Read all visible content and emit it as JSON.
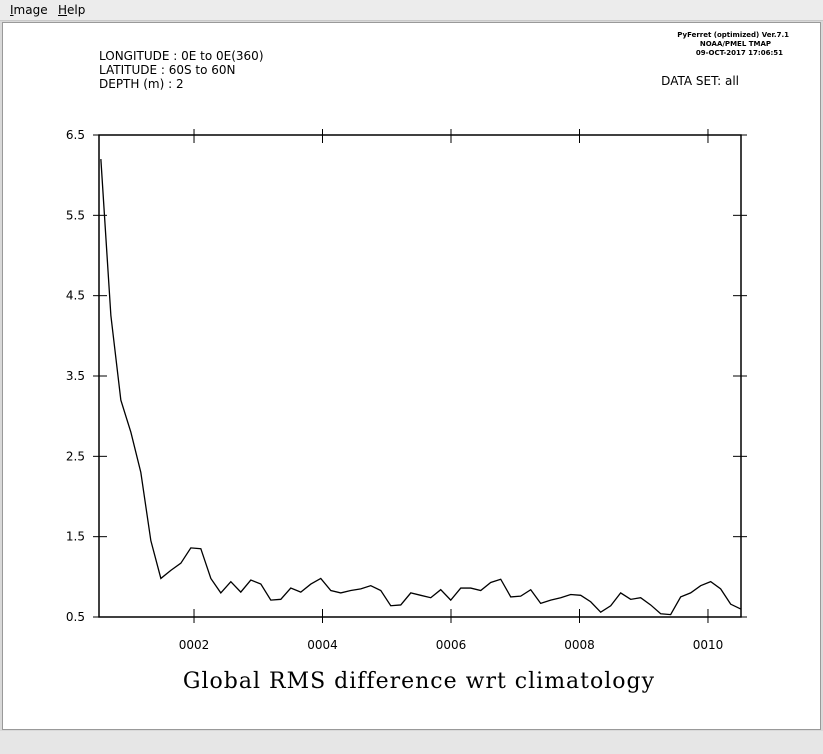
{
  "menu": [
    "Image",
    "Help"
  ],
  "header": {
    "longitude": "LONGITUDE : 0E to 0E(360)",
    "latitude": "LATITUDE : 60S to 60N",
    "depth": "DEPTH (m) : 2",
    "dataset": "DATA SET: all",
    "version": "PyFerret (optimized) Ver.7.1",
    "org": "NOAA/PMEL TMAP",
    "timestamp": "09-OCT-2017 17:06:51"
  },
  "chart_data": {
    "type": "line",
    "title": "Global RMS difference wrt climatology",
    "x": [
      0.55,
      0.706,
      0.861,
      1.017,
      1.172,
      1.328,
      1.484,
      1.639,
      1.795,
      1.95,
      2.106,
      2.262,
      2.417,
      2.573,
      2.728,
      2.884,
      3.04,
      3.195,
      3.351,
      3.506,
      3.662,
      3.818,
      3.973,
      4.129,
      4.284,
      4.44,
      4.596,
      4.751,
      4.907,
      5.062,
      5.218,
      5.374,
      5.529,
      5.685,
      5.84,
      5.996,
      6.152,
      6.307,
      6.463,
      6.618,
      6.774,
      6.93,
      7.085,
      7.241,
      7.396,
      7.552,
      7.708,
      7.863,
      8.019,
      8.174,
      8.33,
      8.486,
      8.641,
      8.797,
      8.952,
      9.108,
      9.264,
      9.419,
      9.575,
      9.73,
      9.886,
      10.042,
      10.197,
      10.353,
      10.508
    ],
    "series": [
      {
        "color": "#000000",
        "values": [
          6.2,
          4.25,
          3.2,
          2.8,
          2.3,
          1.45,
          0.98,
          1.08,
          1.17,
          1.36,
          1.35,
          0.98,
          0.8,
          0.94,
          0.81,
          0.96,
          0.91,
          0.71,
          0.72,
          0.86,
          0.81,
          0.91,
          0.98,
          0.83,
          0.8,
          0.83,
          0.85,
          0.89,
          0.83,
          0.64,
          0.65,
          0.8,
          0.77,
          0.74,
          0.84,
          0.71,
          0.86,
          0.86,
          0.83,
          0.93,
          0.97,
          0.75,
          0.76,
          0.84,
          0.67,
          0.71,
          0.74,
          0.78,
          0.77,
          0.69,
          0.56,
          0.64,
          0.8,
          0.72,
          0.74,
          0.65,
          0.54,
          0.53,
          0.75,
          0.8,
          0.89,
          0.94,
          0.85,
          0.66,
          0.6
        ]
      }
    ],
    "xlim": [
      0.521,
      10.514
    ],
    "xticks": [
      {
        "value": 2,
        "label": "0002"
      },
      {
        "value": 4,
        "label": "0004"
      },
      {
        "value": 6,
        "label": "0006"
      },
      {
        "value": 8,
        "label": "0008"
      },
      {
        "value": 10,
        "label": "0010"
      }
    ],
    "ylim": [
      0.5,
      6.5
    ],
    "yticks": [
      0.5,
      1.5,
      2.5,
      3.5,
      4.5,
      5.5,
      6.5
    ]
  }
}
